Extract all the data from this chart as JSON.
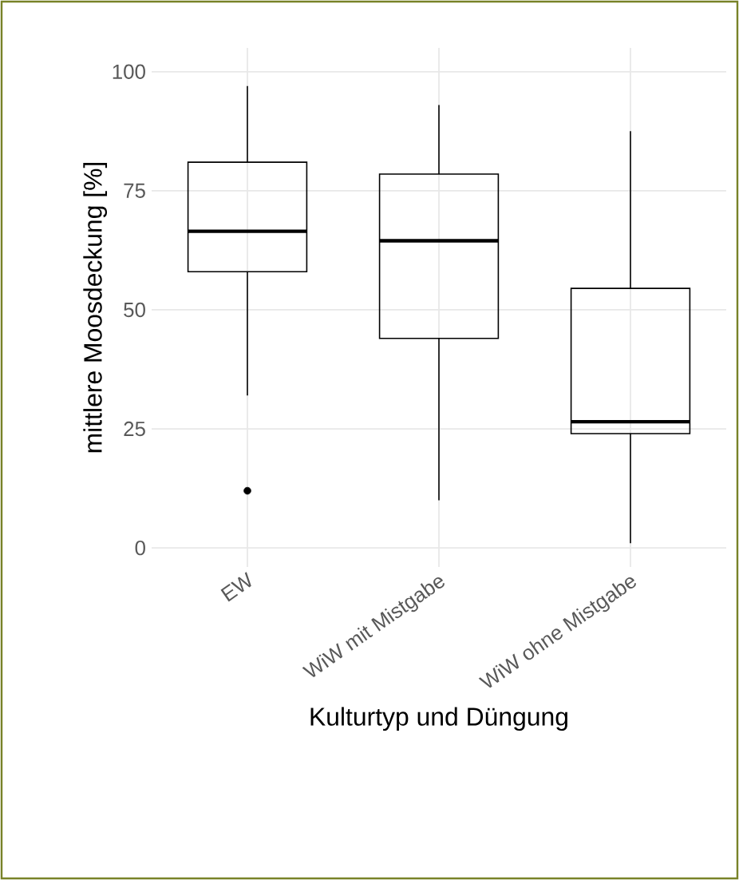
{
  "chart_data": {
    "type": "box",
    "xlabel": "Kulturtyp und Düngung",
    "ylabel": "mittlere Moosdeckung [%]",
    "categories": [
      "EW",
      "WiW mit Mistgabe",
      "WiW ohne Mistgabe"
    ],
    "boxes": [
      {
        "low": 32,
        "q1": 58,
        "median": 66.5,
        "q3": 81,
        "high": 97,
        "outliers": [
          12
        ]
      },
      {
        "low": 10,
        "q1": 44,
        "median": 64.5,
        "q3": 78.5,
        "high": 93
      },
      {
        "low": 1,
        "q1": 24,
        "median": 26.5,
        "q3": 54.5,
        "high": 87.5
      }
    ],
    "color": "#000000",
    "ylim": [
      -4,
      105
    ],
    "yticks": [
      0,
      25,
      50,
      75,
      100
    ],
    "grid": true
  }
}
